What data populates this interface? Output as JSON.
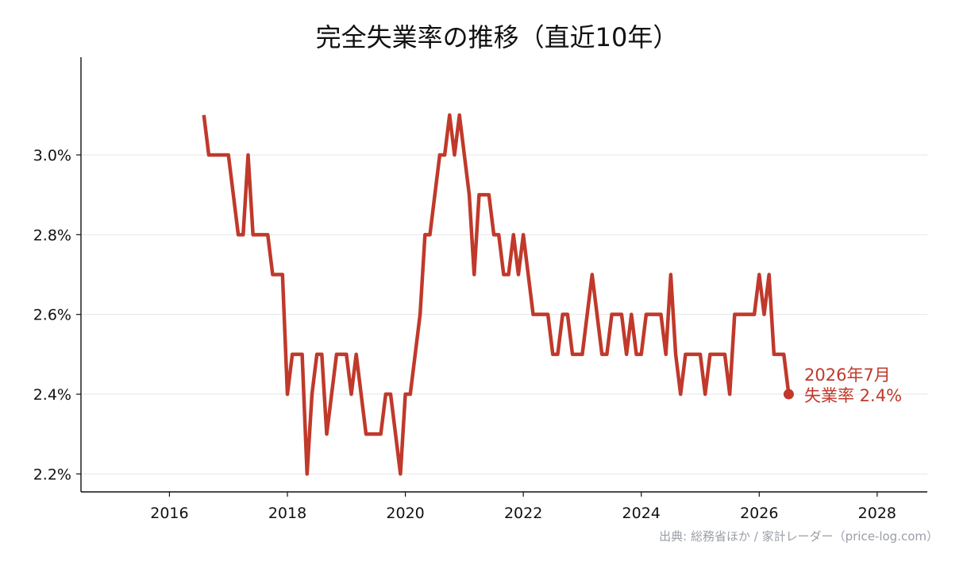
{
  "chart_data": {
    "type": "line",
    "title": "完全失業率の推移（直近10年）",
    "xlabel": "",
    "ylabel": "",
    "x_ticks": [
      "2016",
      "2018",
      "2020",
      "2022",
      "2024",
      "2026",
      "2028"
    ],
    "y_ticks": [
      "2.2%",
      "2.4%",
      "2.6%",
      "2.8%",
      "3.0%"
    ],
    "xlim": [
      2014.5,
      2028.85
    ],
    "ylim": [
      2.155,
      3.245
    ],
    "grid": "horizontal",
    "line_color": "#c0392b",
    "series": [
      {
        "start": [
          2016,
          8
        ],
        "values": [
          3.1,
          3.0,
          3.0,
          3.0,
          3.0,
          3.0,
          2.9,
          2.8,
          2.8,
          3.0,
          2.8,
          2.8,
          2.8,
          2.8,
          2.7,
          2.7,
          2.7,
          2.4,
          2.5,
          2.5,
          2.5,
          2.2,
          2.4,
          2.5,
          2.5,
          2.3,
          2.4,
          2.5,
          2.5,
          2.5,
          2.4,
          2.5,
          2.4,
          2.3,
          2.3,
          2.3,
          2.3,
          2.4,
          2.4,
          2.3,
          2.2,
          2.4,
          2.4,
          2.5,
          2.6,
          2.8,
          2.8,
          2.9,
          3.0,
          3.0,
          3.1,
          3.0,
          3.1,
          3.0,
          2.9,
          2.7,
          2.9,
          2.9,
          2.9,
          2.8,
          2.8,
          2.7,
          2.7,
          2.8,
          2.7,
          2.8,
          2.7,
          2.6,
          2.6,
          2.6,
          2.6,
          2.5,
          2.5,
          2.6,
          2.6,
          2.5,
          2.5,
          2.5,
          2.6,
          2.7,
          2.6,
          2.5,
          2.5,
          2.6,
          2.6,
          2.6,
          2.5,
          2.6,
          2.5,
          2.5,
          2.6,
          2.6,
          2.6,
          2.6,
          2.5,
          2.7,
          2.5,
          2.4,
          2.5,
          2.5,
          2.5,
          2.5,
          2.4,
          2.5,
          2.5,
          2.5,
          2.5,
          2.4,
          2.6,
          2.6,
          2.6,
          2.6,
          2.6,
          2.7,
          2.6,
          2.7,
          2.5,
          2.5,
          2.5,
          2.4
        ]
      }
    ],
    "annotation": {
      "line1": "2026年7月",
      "line2": "失業率 2.4%",
      "x": [
        2026,
        7
      ],
      "y": 2.4
    }
  },
  "source": "出典: 総務省ほか / 家計レーダー（price-log.com）"
}
